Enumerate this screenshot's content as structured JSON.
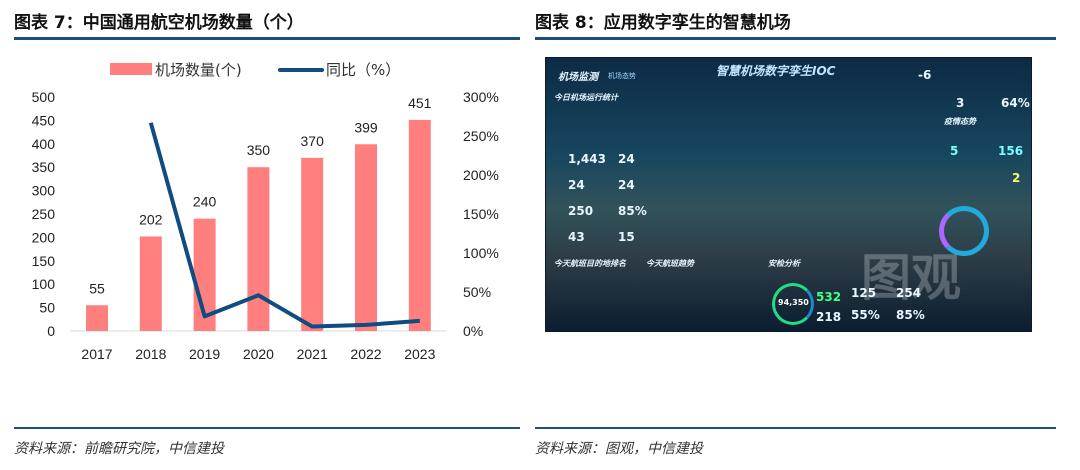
{
  "left": {
    "title": "图表 7：中国通用航空机场数量（个）",
    "source": "资料来源：前瞻研究院，中信建投"
  },
  "right": {
    "title": "图表 8：应用数字孪生的智慧机场",
    "source": "资料来源：图观，中信建投",
    "dashboard": {
      "title": "智慧机场数字孪生IOC",
      "nav": "机场监测",
      "nav_sub": "机场态势",
      "temp": "-6",
      "section1": "今日机场运行统计",
      "section2": "疫情态势",
      "section3": "今天航班目的地排名",
      "section4": "今天航班趋势",
      "section5": "安检分析",
      "stats": [
        "1,443",
        "24",
        "24",
        "24",
        "250",
        "85%",
        "43",
        "15"
      ],
      "top_stats": [
        "3",
        "64%"
      ],
      "epidemic": [
        "5",
        "156",
        "2"
      ],
      "security": {
        "total": "94,350",
        "a": "532",
        "b": "218",
        "c": "125",
        "d": "254",
        "e": "55%",
        "f": "85%"
      },
      "watermark": "图观"
    }
  },
  "chart_data": {
    "type": "bar+line",
    "categories": [
      "2017",
      "2018",
      "2019",
      "2020",
      "2021",
      "2022",
      "2023"
    ],
    "series": [
      {
        "name": "机场数量(个)",
        "type": "bar",
        "color": "#ff7f7f",
        "axis": "left",
        "values": [
          55,
          202,
          240,
          350,
          370,
          399,
          451
        ]
      },
      {
        "name": "同比（%）",
        "type": "line",
        "color": "#0f4c81",
        "axis": "right",
        "values": [
          null,
          267,
          18.8,
          45.8,
          5.7,
          7.8,
          13.0
        ]
      }
    ],
    "ylim_left": [
      0,
      500
    ],
    "yticks_left": [
      "0",
      "50",
      "100",
      "150",
      "200",
      "250",
      "300",
      "350",
      "400",
      "450",
      "500"
    ],
    "ylim_right": [
      0,
      300
    ],
    "yticks_right": [
      "0%",
      "50%",
      "100%",
      "150%",
      "200%",
      "250%",
      "300%"
    ],
    "data_labels": [
      "55",
      "202",
      "240",
      "350",
      "370",
      "399",
      "451"
    ],
    "legend": "top",
    "grid": false
  }
}
